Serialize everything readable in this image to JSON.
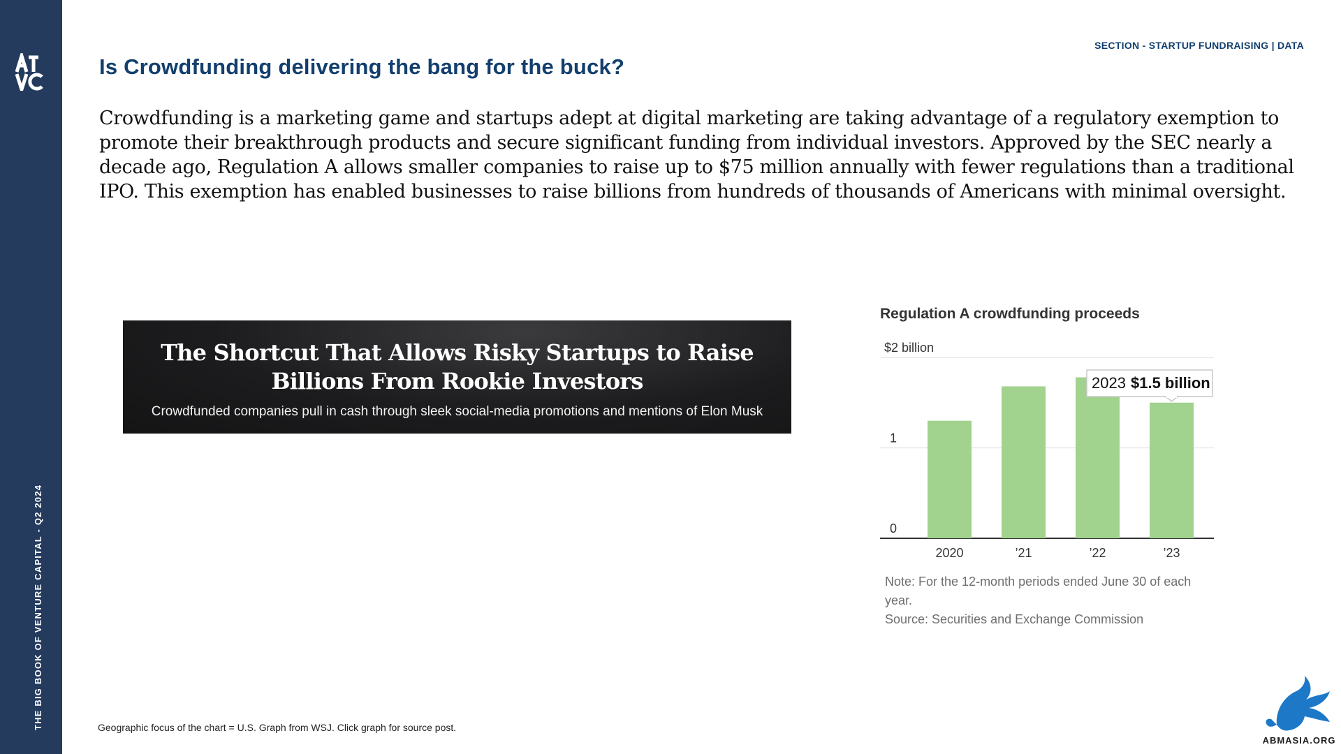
{
  "sidebar": {
    "logo_text": "ATVC",
    "vertical_text": "THE BIG BOOK OF VENTURE CAPITAL - Q2 2024"
  },
  "header": {
    "section_label": "SECTION - STARTUP FUNDRAISING | DATA",
    "title": "Is Crowdfunding delivering the bang for the buck?"
  },
  "intro_text": "Crowdfunding is a marketing game and startups adept at digital marketing are taking advantage of a regulatory exemption to promote their breakthrough products and secure significant funding from individual investors. Approved by the SEC nearly a decade ago, Regulation A allows smaller companies to raise up to $75 million annually with fewer regulations than a traditional IPO. This exemption has enabled businesses to raise billions from hundreds of thousands of Americans with minimal oversight.",
  "article_banner": {
    "headline": "The Shortcut That Allows Risky Startups to Raise Billions From Rookie Investors",
    "subheadline": "Crowdfunded companies pull in cash through sleek social-media promotions and mentions of Elon Musk"
  },
  "chart_data": {
    "type": "bar",
    "title": "Regulation A crowdfunding proceeds",
    "categories": [
      "2020",
      "’21",
      "’22",
      "’23"
    ],
    "values": [
      1.3,
      1.68,
      1.78,
      1.5
    ],
    "ylim": [
      0,
      2
    ],
    "yticks": [
      {
        "value": 0,
        "label": "0"
      },
      {
        "value": 1,
        "label": "1"
      },
      {
        "value": 2,
        "label": "$2 billion"
      }
    ],
    "grid": true,
    "bar_color": "#a1d28e",
    "annotation": {
      "year": "2023",
      "value_text": "$1.5 billion"
    }
  },
  "chart_note": "Note: For the 12-month periods ended June 30 of each year.",
  "chart_source": "Source: Securities and Exchange Commission",
  "footnote": "Geographic focus of the chart = U.S. Graph from WSJ. Click graph for source post.",
  "watermark_text": "ABMASIA.ORG",
  "colors": {
    "sidebar": "#243b5e",
    "title": "#123f6e",
    "bird": "#1d78c8"
  }
}
